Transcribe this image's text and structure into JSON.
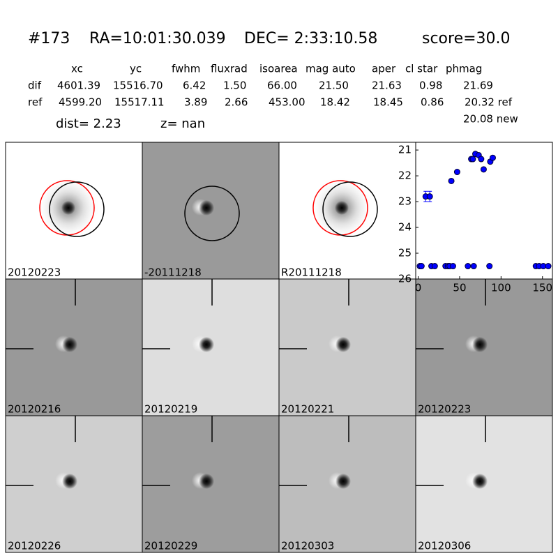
{
  "header": {
    "id": "#173",
    "ra": "RA=10:01:30.039",
    "dec": "DEC= 2:33:10.58",
    "score": "score=30.0"
  },
  "table": {
    "columns": [
      "xc",
      "yc",
      "fwhm",
      "fluxrad",
      "isoarea",
      "mag auto",
      "aper",
      "cl star",
      "phmag"
    ],
    "rows": [
      [
        "dif",
        "4601.39",
        "15516.70",
        "6.42",
        "1.50",
        "66.00",
        "21.50",
        "21.63",
        "0.98",
        "21.69"
      ],
      [
        "ref",
        "4599.20",
        "15517.11",
        "3.89",
        "2.66",
        "453.00",
        "18.42",
        "18.45",
        "0.86",
        "20.32 ref"
      ]
    ],
    "extra": "20.08 new"
  },
  "dist": "dist=  2.23",
  "z": "z=   nan",
  "panels": [
    {
      "label": "20120223"
    },
    {
      "label": "-20111218"
    },
    {
      "label": "R20111218"
    },
    {
      "label": "20120216"
    },
    {
      "label": "20120219"
    },
    {
      "label": "20120221"
    },
    {
      "label": "20120223",
      "color": "#ff0000"
    },
    {
      "label": "20120226"
    },
    {
      "label": "20120229"
    },
    {
      "label": "20120303"
    },
    {
      "label": "20120306"
    }
  ],
  "chart_data": {
    "type": "scatter",
    "color": "#0000ff",
    "x": [
      2,
      4,
      16,
      20,
      33,
      36,
      38,
      42,
      60,
      67,
      86,
      142,
      146,
      151,
      157,
      9,
      14,
      40,
      47,
      64,
      66,
      69,
      73,
      76,
      79,
      87,
      90
    ],
    "values": [
      25.5,
      25.5,
      25.5,
      25.5,
      25.5,
      25.5,
      25.5,
      25.5,
      25.5,
      25.5,
      25.5,
      25.5,
      25.5,
      25.5,
      25.5,
      22.8,
      22.8,
      22.2,
      21.85,
      21.35,
      21.35,
      21.15,
      21.2,
      21.35,
      21.75,
      21.45,
      21.3
    ],
    "errors": [
      0,
      0,
      0,
      0,
      0,
      0,
      0,
      0,
      0,
      0,
      0,
      0,
      0,
      0,
      0,
      0.2,
      0.2,
      0.05,
      0.05,
      0.05,
      0.05,
      0.05,
      0.05,
      0.05,
      0.05,
      0.05,
      0.05
    ],
    "xlim": [
      -3,
      162
    ],
    "ylim": [
      26,
      20.7
    ],
    "xticks": [
      0,
      50,
      100,
      150
    ],
    "yticks": [
      21,
      22,
      23,
      24,
      25,
      26
    ]
  }
}
